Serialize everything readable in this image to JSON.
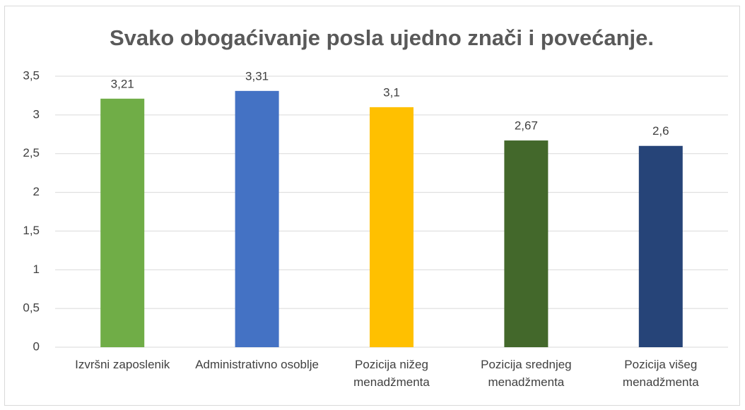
{
  "chart_data": {
    "type": "bar",
    "title": "Svako obogaćivanje posla ujedno znači i povećanje.",
    "categories": [
      "Izvršni zaposlenik",
      "Administrativno osoblje",
      "Pozicija nižeg menadžmenta",
      "Pozicija srednjeg menadžmenta",
      "Pozicija višeg menadžmenta"
    ],
    "values": [
      3.21,
      3.31,
      3.1,
      2.67,
      2.6
    ],
    "value_labels": [
      "3,21",
      "3,31",
      "3,1",
      "2,67",
      "2,6"
    ],
    "colors": [
      "#70ad47",
      "#4472c4",
      "#ffc000",
      "#43682b",
      "#264478"
    ],
    "ylim": [
      0,
      3.5
    ],
    "yticks": [
      0,
      {
        "value": 0.5,
        "label": "0,5"
      },
      1,
      {
        "value": 1.5,
        "label": "1,5"
      },
      2,
      {
        "value": 2.5,
        "label": "2,5"
      },
      3,
      {
        "value": 3.5,
        "label": "3,5"
      }
    ],
    "grid": true
  }
}
